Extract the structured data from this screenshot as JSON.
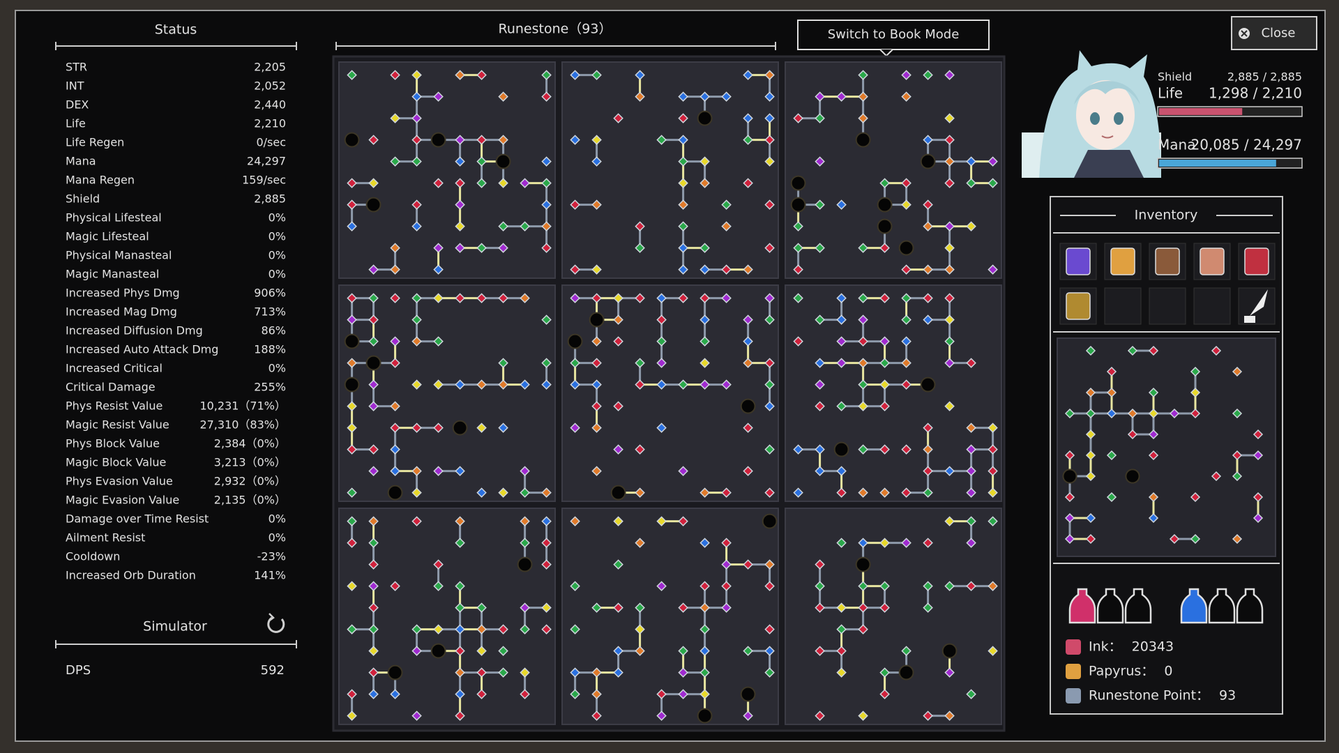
{
  "status": {
    "title": "Status",
    "rows": [
      {
        "label": "STR",
        "value": "2,205"
      },
      {
        "label": "INT",
        "value": "2,052"
      },
      {
        "label": "DEX",
        "value": "2,440"
      },
      {
        "label": "Life",
        "value": "2,210"
      },
      {
        "label": "Life Regen",
        "value": "0/sec"
      },
      {
        "label": "Mana",
        "value": "24,297"
      },
      {
        "label": "Mana Regen",
        "value": "159/sec"
      },
      {
        "label": "Shield",
        "value": "2,885"
      },
      {
        "label": "Physical Lifesteal",
        "value": "0%"
      },
      {
        "label": "Magic Lifesteal",
        "value": "0%"
      },
      {
        "label": "Physical Manasteal",
        "value": "0%"
      },
      {
        "label": "Magic Manasteal",
        "value": "0%"
      },
      {
        "label": "Increased Phys Dmg",
        "value": "906%"
      },
      {
        "label": "Increased Mag Dmg",
        "value": "713%"
      },
      {
        "label": "Increased Diffusion Dmg",
        "value": "86%"
      },
      {
        "label": "Increased Auto Attack Dmg",
        "value": "188%"
      },
      {
        "label": "Increased Critical",
        "value": "0%"
      },
      {
        "label": "Critical Damage",
        "value": "255%"
      },
      {
        "label": "Phys Resist Value",
        "value": "10,231（71%）"
      },
      {
        "label": "Magic Resist Value",
        "value": "27,310（83%）"
      },
      {
        "label": "Phys Block Value",
        "value": "2,384（0%）"
      },
      {
        "label": "Magic Block Value",
        "value": "3,213（0%）"
      },
      {
        "label": "Phys Evasion Value",
        "value": "2,932（0%）"
      },
      {
        "label": "Magic Evasion Value",
        "value": "2,135（0%）"
      },
      {
        "label": "Damage over Time Resist",
        "value": "0%"
      },
      {
        "label": "Ailment Resist",
        "value": "0%"
      },
      {
        "label": "Cooldown",
        "value": "-23%"
      },
      {
        "label": "Increased Orb Duration",
        "value": "141%"
      }
    ]
  },
  "simulator": {
    "title": "Simulator",
    "label": "DPS",
    "value": "592"
  },
  "runestone": {
    "title": "Runestone（93）"
  },
  "book_mode_button": "Switch to Book Mode",
  "close_button": "Close",
  "character": {
    "shield_label": "Shield",
    "shield": "2,885 / 2,885",
    "life_label": "Life",
    "life": "1,298 / 2,210",
    "mana_label": "Mana",
    "mana": "20,085 / 24,297"
  },
  "inventory": {
    "title": "Inventory"
  },
  "resources": [
    {
      "label": "Ink：",
      "value": "20343"
    },
    {
      "label": "Papyrus：",
      "value": "0"
    },
    {
      "label": "Runestone Point：",
      "value": "93"
    }
  ]
}
